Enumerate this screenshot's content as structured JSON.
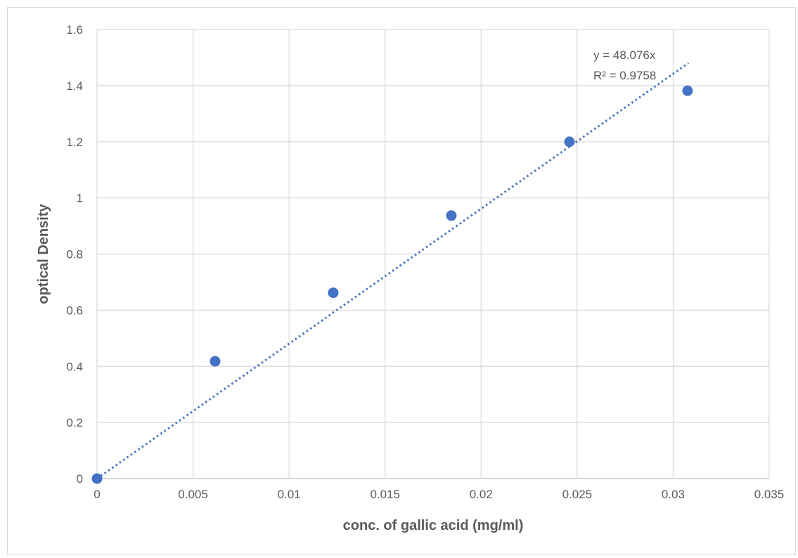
{
  "chart_data": {
    "type": "scatter",
    "title": "",
    "xlabel": "conc. of gallic acid (mg/ml)",
    "ylabel": "optical Density",
    "xlim": [
      0,
      0.035
    ],
    "ylim": [
      0,
      1.6
    ],
    "x_ticks": [
      "0",
      "0.005",
      "0.01",
      "0.015",
      "0.02",
      "0.025",
      "0.03",
      "0.035"
    ],
    "y_ticks": [
      "0",
      "0.2",
      "0.4",
      "0.6",
      "0.8",
      "1",
      "1.2",
      "1.4",
      "1.6"
    ],
    "grid": true,
    "legend": "none",
    "series": [
      {
        "points": [
          {
            "x": 0,
            "y": 0
          },
          {
            "x": 0.00615,
            "y": 0.418
          },
          {
            "x": 0.0123,
            "y": 0.662
          },
          {
            "x": 0.01845,
            "y": 0.937
          },
          {
            "x": 0.0246,
            "y": 1.2
          },
          {
            "x": 0.03075,
            "y": 1.382
          }
        ],
        "color": "#4472c4"
      }
    ],
    "trendline": {
      "type": "linear",
      "slope": 48.076,
      "intercept": 0,
      "x_range": [
        0,
        0.0308
      ],
      "style": "dotted",
      "color": "#4472c4",
      "equation_label": "y = 48.076x",
      "r2_label": "R² = 0.9758"
    }
  }
}
